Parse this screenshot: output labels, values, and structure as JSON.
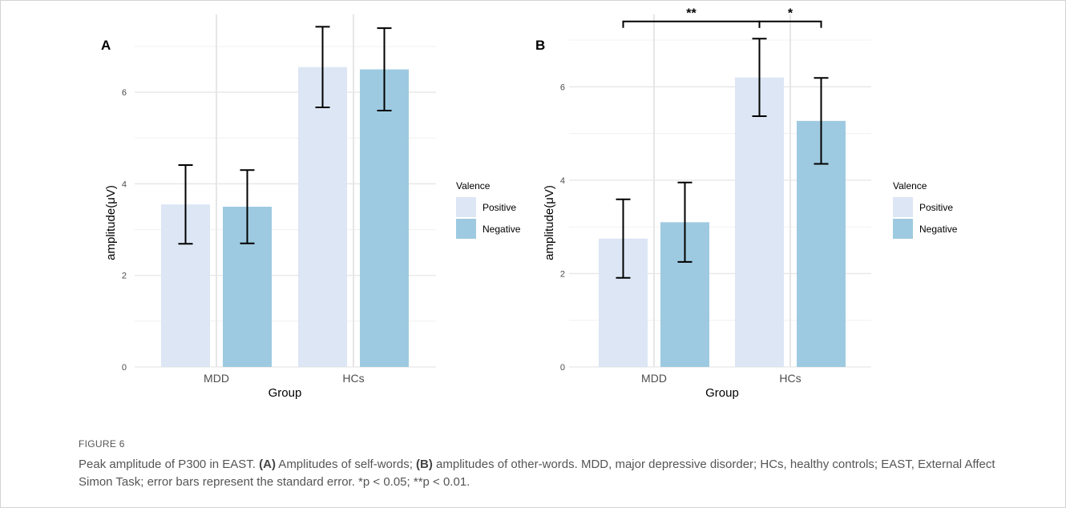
{
  "chart_data": [
    {
      "type": "bar",
      "panel_label": "A",
      "categories": [
        "MDD",
        "HCs"
      ],
      "xlabel": "Group",
      "ylabel": "amplitude(μV)",
      "ylim": [
        0,
        7.7
      ],
      "yticks": [
        0,
        2,
        4,
        6
      ],
      "grid": true,
      "legend": {
        "title": "Valence",
        "position": "right"
      },
      "series": [
        {
          "name": "Positive",
          "color": "#dce6f4",
          "values": [
            3.55,
            6.55
          ],
          "error": [
            0.86,
            0.88
          ]
        },
        {
          "name": "Negative",
          "color": "#9ecae1",
          "values": [
            3.5,
            6.5
          ],
          "error": [
            0.8,
            0.9
          ]
        }
      ],
      "significance": []
    },
    {
      "type": "bar",
      "panel_label": "B",
      "categories": [
        "MDD",
        "HCs"
      ],
      "xlabel": "Group",
      "ylabel": "amplitude(μV)",
      "ylim": [
        0,
        7.55
      ],
      "yticks": [
        0,
        2,
        4,
        6
      ],
      "grid": true,
      "legend": {
        "title": "Valence",
        "position": "right"
      },
      "series": [
        {
          "name": "Positive",
          "color": "#dce6f4",
          "values": [
            2.75,
            6.2
          ],
          "error": [
            0.84,
            0.83
          ]
        },
        {
          "name": "Negative",
          "color": "#9ecae1",
          "values": [
            3.1,
            5.27
          ],
          "error": [
            0.85,
            0.92
          ]
        }
      ],
      "significance": [
        {
          "label": "**",
          "from": "MDD",
          "to": "HCs",
          "y": 7.4
        },
        {
          "label": "*",
          "from": "HCs-Positive",
          "to": "HCs-Negative",
          "y": 7.4
        }
      ]
    }
  ],
  "caption": {
    "figure_label": "FIGURE 6",
    "p1": "Peak amplitude of P300 in EAST. ",
    "a_tag": "(A)",
    "p2": " Amplitudes of self-words; ",
    "b_tag": "(B)",
    "p3": " amplitudes of other-words. MDD, major depressive disorder; HCs, healthy controls; EAST, External Affect Simon Task; error bars represent the standard error. *p < 0.05; **p < 0.01."
  }
}
